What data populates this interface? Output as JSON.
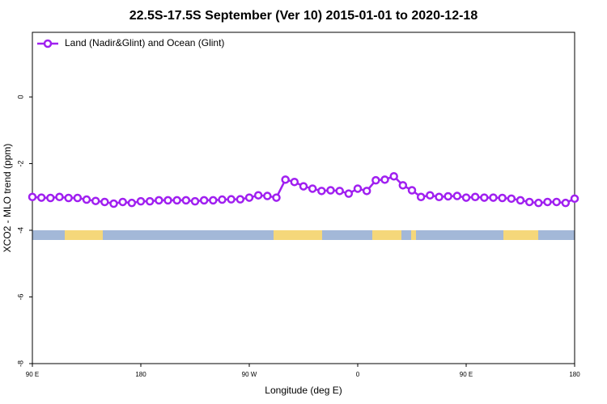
{
  "chart_data": {
    "type": "line",
    "title": "22.5S-17.5S September (Ver 10)   2015-01-01 to 2020-12-18",
    "xlabel": "Longitude (deg E)",
    "ylabel": "XCO2 - MLO trend (ppm)",
    "xlim": [
      90,
      540
    ],
    "ylim": [
      -8,
      1.94
    ],
    "xticks": [
      {
        "value": 90,
        "label": "90 E"
      },
      {
        "value": 180,
        "label": "180"
      },
      {
        "value": 270,
        "label": "90 W"
      },
      {
        "value": 360,
        "label": "0"
      },
      {
        "value": 450,
        "label": "90 E"
      },
      {
        "value": 540,
        "label": "180"
      }
    ],
    "yticks": [
      0,
      -2,
      -4,
      -6,
      -8
    ],
    "legend": "top-left",
    "x": [
      90,
      97.5,
      105,
      112.5,
      120,
      127.5,
      135,
      142.5,
      150,
      157.5,
      165,
      172.5,
      180,
      187.5,
      195,
      202.5,
      210,
      217.5,
      225,
      232.5,
      240,
      247.5,
      255,
      262.5,
      270,
      277.5,
      285,
      292.5,
      300,
      307.5,
      315,
      322.5,
      330,
      337.5,
      345,
      352.5,
      360,
      367.5,
      375,
      382.5,
      390,
      397.5,
      405,
      412.5,
      420,
      427.5,
      435,
      442.5,
      450,
      457.5,
      465,
      472.5,
      480,
      487.5,
      495,
      502.5,
      510,
      517.5,
      525,
      532.5,
      540
    ],
    "series": [
      {
        "name": "Land (Nadir&Glint) and Ocean (Glint)",
        "color": "#a020f0",
        "values": [
          -3.0,
          -3.02,
          -3.03,
          -3.0,
          -3.03,
          -3.03,
          -3.08,
          -3.12,
          -3.15,
          -3.2,
          -3.15,
          -3.18,
          -3.13,
          -3.13,
          -3.1,
          -3.1,
          -3.1,
          -3.1,
          -3.13,
          -3.1,
          -3.1,
          -3.08,
          -3.07,
          -3.07,
          -3.02,
          -2.95,
          -2.97,
          -3.02,
          -2.48,
          -2.55,
          -2.68,
          -2.75,
          -2.82,
          -2.8,
          -2.82,
          -2.9,
          -2.75,
          -2.82,
          -2.5,
          -2.48,
          -2.38,
          -2.65,
          -2.8,
          -3.0,
          -2.95,
          -3.0,
          -2.98,
          -2.97,
          -3.02,
          -3.0,
          -3.02,
          -3.02,
          -3.03,
          -3.05,
          -3.1,
          -3.15,
          -3.18,
          -3.15,
          -3.15,
          -3.18,
          -3.05
        ]
      }
    ]
  }
}
